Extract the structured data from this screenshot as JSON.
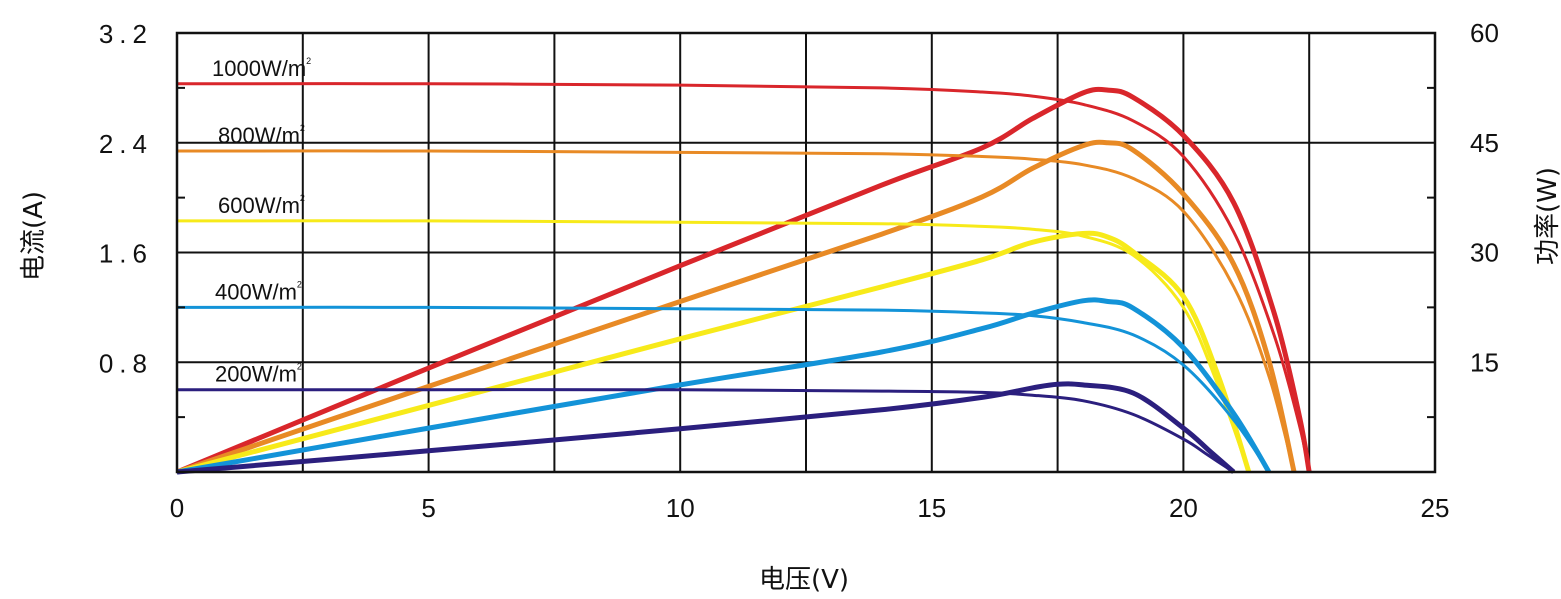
{
  "chart_data": {
    "type": "line",
    "xlabel": "电压(V)",
    "ylabel_left": "电流(A)",
    "ylabel_right": "功率(W)",
    "xlim": [
      0,
      25
    ],
    "ylim_left": [
      0,
      3.2
    ],
    "ylim_right": [
      0,
      60
    ],
    "x_ticks": [
      "0",
      "5",
      "10",
      "15",
      "20",
      "25"
    ],
    "y_left_ticks": [
      "0.8",
      "1.6",
      "2.4",
      "3.2"
    ],
    "y_right_ticks": [
      "15",
      "30",
      "45",
      "60"
    ],
    "grid": true,
    "series": [
      {
        "name": "1000W/m²",
        "label_text": "1000W/m",
        "label_sup": "2",
        "color": "#d9262b",
        "current": {
          "x": [
            0,
            5,
            10,
            14,
            16,
            17,
            18,
            19,
            20,
            21,
            21.8,
            22.3,
            22.5
          ],
          "y": [
            2.83,
            2.83,
            2.82,
            2.8,
            2.77,
            2.74,
            2.68,
            2.56,
            2.3,
            1.75,
            1.0,
            0.35,
            0
          ]
        },
        "power": {
          "x": [
            0,
            5,
            10,
            14,
            16,
            17,
            18,
            18.5,
            19,
            20,
            21,
            21.8,
            22.3,
            22.5
          ],
          "y": [
            0,
            14.2,
            28.2,
            39.2,
            44.3,
            48.3,
            51.8,
            52.2,
            51.2,
            46.0,
            36.8,
            21.8,
            7.8,
            0
          ]
        }
      },
      {
        "name": "800W/m²",
        "label_text": "800W/m",
        "label_sup": "2",
        "color": "#e88a25",
        "current": {
          "x": [
            0,
            5,
            10,
            14,
            16,
            17,
            18,
            19,
            20,
            21,
            21.7,
            22.2
          ],
          "y": [
            2.34,
            2.34,
            2.33,
            2.32,
            2.3,
            2.28,
            2.24,
            2.14,
            1.9,
            1.35,
            0.7,
            0
          ]
        },
        "power": {
          "x": [
            0,
            5,
            10,
            14,
            16,
            17,
            18,
            18.5,
            19,
            20,
            21,
            21.7,
            22.2
          ],
          "y": [
            0,
            11.7,
            23.3,
            32.5,
            37.6,
            41.5,
            44.6,
            45.0,
            44.0,
            38.0,
            28.4,
            15.2,
            0
          ]
        }
      },
      {
        "name": "600W/m²",
        "label_text": "600W/m",
        "label_sup": "2",
        "color": "#f7ea1a",
        "current": {
          "x": [
            0,
            5,
            10,
            14,
            16,
            17,
            18,
            19,
            20,
            20.7,
            21.3
          ],
          "y": [
            1.83,
            1.83,
            1.82,
            1.81,
            1.79,
            1.77,
            1.72,
            1.58,
            1.2,
            0.62,
            0
          ]
        },
        "power": {
          "x": [
            0,
            5,
            10,
            14,
            16,
            17,
            18,
            18.5,
            19,
            20,
            20.7,
            21.3
          ],
          "y": [
            0,
            9.1,
            18.2,
            25.3,
            29.0,
            31.4,
            32.6,
            32.1,
            30.1,
            24.0,
            13.0,
            0
          ]
        }
      },
      {
        "name": "400W/m²",
        "label_text": "400W/m",
        "label_sup": "2",
        "color": "#1393d8",
        "current": {
          "x": [
            0,
            5,
            10,
            14,
            16,
            17,
            18,
            19,
            20,
            21,
            21.7
          ],
          "y": [
            1.2,
            1.2,
            1.19,
            1.18,
            1.16,
            1.14,
            1.09,
            1.0,
            0.78,
            0.38,
            0
          ]
        },
        "power": {
          "x": [
            0,
            5,
            10,
            14,
            16,
            17,
            18,
            18.5,
            19,
            20,
            21,
            21.7
          ],
          "y": [
            0,
            6.0,
            11.9,
            16.4,
            19.6,
            21.7,
            23.4,
            23.3,
            22.4,
            17.0,
            8.0,
            0
          ]
        }
      },
      {
        "name": "200W/m²",
        "label_text": "200W/m",
        "label_sup": "2",
        "color": "#2b1f7e",
        "current": {
          "x": [
            0,
            5,
            10,
            14,
            16,
            17,
            18,
            19,
            20,
            20.5,
            21
          ],
          "y": [
            0.6,
            0.6,
            0.6,
            0.59,
            0.58,
            0.56,
            0.52,
            0.42,
            0.24,
            0.12,
            0
          ]
        },
        "power": {
          "x": [
            0,
            5,
            10,
            14,
            16,
            17,
            17.5,
            18,
            19,
            20,
            20.5,
            21
          ],
          "y": [
            0,
            2.9,
            5.9,
            8.5,
            10.2,
            11.5,
            12.0,
            11.9,
            10.8,
            6.0,
            3.0,
            0
          ]
        }
      }
    ]
  }
}
